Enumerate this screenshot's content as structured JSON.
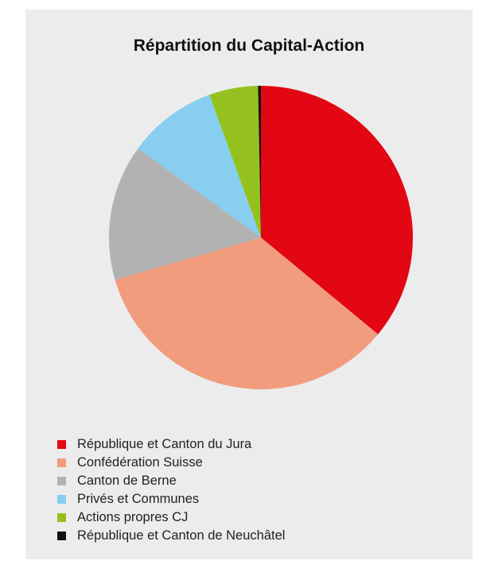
{
  "chart_data": {
    "type": "pie",
    "title": "Répartition du Capital-Action",
    "categories": [
      "République et Canton du Jura",
      "Confédération Suisse",
      "Canton de Berne",
      "Privés et Communes",
      "Actions propres CJ",
      "République et Canton de Neuchâtel"
    ],
    "values": [
      36.0,
      34.5,
      14.5,
      9.5,
      5.2,
      0.3
    ],
    "colors": [
      "#e30613",
      "#f29c7e",
      "#b2b2b2",
      "#87cef0",
      "#95c11f",
      "#111111"
    ],
    "legend_position": "bottom-left"
  }
}
